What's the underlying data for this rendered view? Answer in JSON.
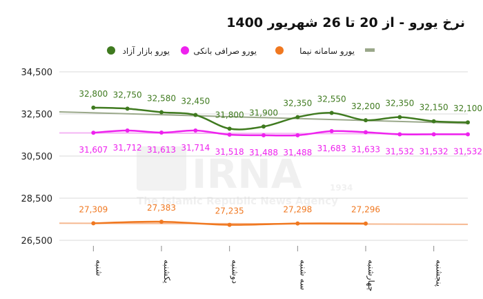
{
  "chart_data": {
    "type": "line",
    "title": "نرخ یورو - از 20 تا 26 شهریور 1400",
    "categories": [
      "شنبه",
      "یکشنبه",
      "دوشنبه",
      "سه شنبه",
      "چهارشنبه",
      "پنجشنبه"
    ],
    "x": [
      0.5,
      1.0,
      1.5,
      2.0,
      2.5,
      3.0,
      3.5,
      4.0,
      4.5,
      5.0,
      5.5
    ],
    "ylim": [
      26500,
      34500
    ],
    "yticks": [
      "34,500",
      "32,500",
      "30,500",
      "28,500",
      "26,500"
    ],
    "yticks_values": [
      34500,
      32500,
      30500,
      28500,
      26500
    ],
    "grid": true,
    "legend_position": "top",
    "series": [
      {
        "name": "یورو بازار آزاد",
        "color": "#3f7a1f",
        "values": [
          32800,
          32750,
          32580,
          32450,
          31800,
          31900,
          32350,
          32550,
          32200,
          32350,
          32150,
          32100
        ],
        "x": [
          0.0,
          0.5,
          1.0,
          1.5,
          2.0,
          2.5,
          3.0,
          3.5,
          4.0,
          4.5,
          5.0,
          5.5
        ],
        "labels": [
          "32,800",
          "32,750",
          "32,580",
          "32,450",
          "31,800",
          "31,900",
          "32,350",
          "32,550",
          "32,200",
          "32,350",
          "32,150",
          "32,100"
        ]
      },
      {
        "name": "یورو صرافی بانکی",
        "color": "#ee22ee",
        "values": [
          31607,
          31712,
          31613,
          31714,
          31518,
          31488,
          31488,
          31683,
          31633,
          31532,
          31532,
          31532
        ],
        "x": [
          0.0,
          0.5,
          1.0,
          1.5,
          2.0,
          2.5,
          3.0,
          3.5,
          4.0,
          4.5,
          5.0,
          5.5
        ],
        "labels": [
          "31,607",
          "31,712",
          "31,613",
          "31,714",
          "31,518",
          "31,488",
          "31,488",
          "31,683",
          "31,633",
          "31,532",
          "31,532",
          "31,532"
        ]
      },
      {
        "name": "یورو سامانه نیما",
        "color": "#f07820",
        "values": [
          27309,
          27383,
          27235,
          27298,
          27296
        ],
        "x": [
          0.0,
          1.0,
          2.0,
          3.0,
          4.0
        ],
        "labels": [
          "27,309",
          "27,383",
          "27,235",
          "27,298",
          "27,296"
        ]
      }
    ],
    "trendlines": [
      {
        "color": "#9aa88a",
        "from": 32600,
        "to": 32050
      },
      {
        "color": "#f4b4f4",
        "from": 31600,
        "to": 31550
      },
      {
        "color": "#f6b890",
        "from": 27310,
        "to": 27260
      }
    ],
    "watermark": {
      "brand": "IRNA",
      "year": "1934",
      "agency": "The Islamic Republic News Agency"
    }
  }
}
